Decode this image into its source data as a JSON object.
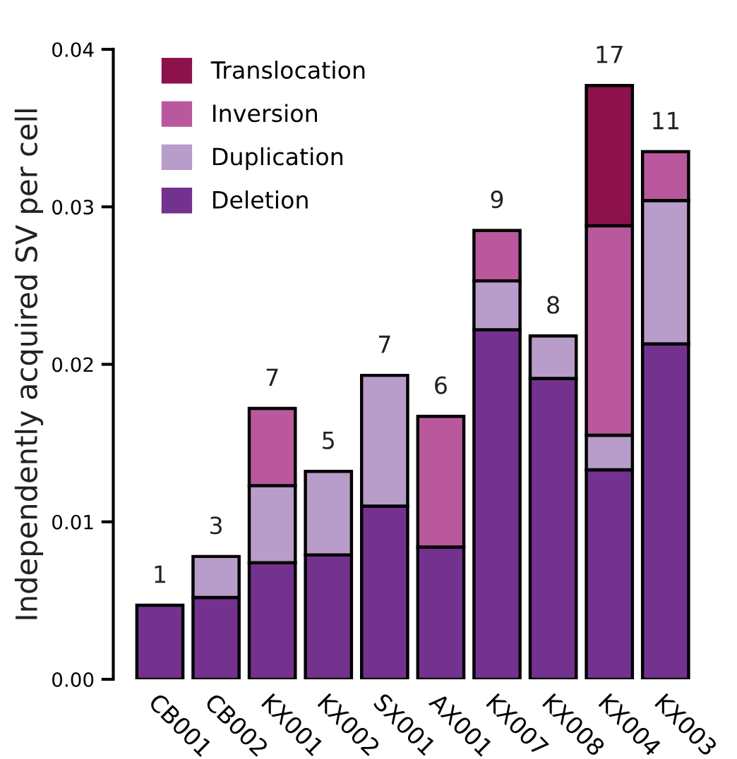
{
  "chart_data": {
    "type": "bar",
    "stacked": true,
    "ylabel": "Independently acquired SV per cell",
    "categories": [
      "CB001",
      "CB002",
      "KX001",
      "KX002",
      "SX001",
      "AX001",
      "KX007",
      "KX008",
      "KX004",
      "KX003"
    ],
    "series": [
      {
        "name": "Deletion",
        "color": "#74328f",
        "values": [
          0.0047,
          0.0052,
          0.0074,
          0.0079,
          0.011,
          0.0084,
          0.0222,
          0.0191,
          0.0133,
          0.0213
        ]
      },
      {
        "name": "Duplication",
        "color": "#b89cc9",
        "values": [
          null,
          0.0026,
          0.0049,
          0.0053,
          0.0083,
          null,
          0.0031,
          0.0027,
          0.0022,
          0.0091
        ]
      },
      {
        "name": "Inversion",
        "color": "#b9589d",
        "values": [
          null,
          null,
          0.0049,
          null,
          null,
          0.0083,
          0.0032,
          null,
          0.0133,
          0.0031
        ]
      },
      {
        "name": "Translocation",
        "color": "#8d124c",
        "values": [
          null,
          null,
          null,
          null,
          null,
          null,
          null,
          null,
          0.0089,
          null
        ]
      }
    ],
    "annotations": [
      {
        "text": "1",
        "x": "CB001",
        "y": 0.0047
      },
      {
        "text": "3",
        "x": "CB002",
        "y": 0.0078
      },
      {
        "text": "7",
        "x": "KX001",
        "y": 0.0172
      },
      {
        "text": "5",
        "x": "KX002",
        "y": 0.0132
      },
      {
        "text": "7",
        "x": "SX001",
        "y": 0.0193
      },
      {
        "text": "6",
        "x": "AX001",
        "y": 0.0167
      },
      {
        "text": "9",
        "x": "KX007",
        "y": 0.0285
      },
      {
        "text": "8",
        "x": "KX008",
        "y": 0.0218
      },
      {
        "text": "17",
        "x": "KX004",
        "y": 0.0377
      },
      {
        "text": "11",
        "x": "KX003",
        "y": 0.0335
      }
    ],
    "ylim": [
      0,
      0.04
    ],
    "yticks": [
      {
        "value": 0,
        "label": "0.00"
      },
      {
        "value": 0.01,
        "label": "0.01"
      },
      {
        "value": 0.02,
        "label": "0.02"
      },
      {
        "value": 0.03,
        "label": "0.03"
      },
      {
        "value": 0.04,
        "label": "0.04"
      }
    ],
    "grid": false,
    "legend": "top left"
  }
}
